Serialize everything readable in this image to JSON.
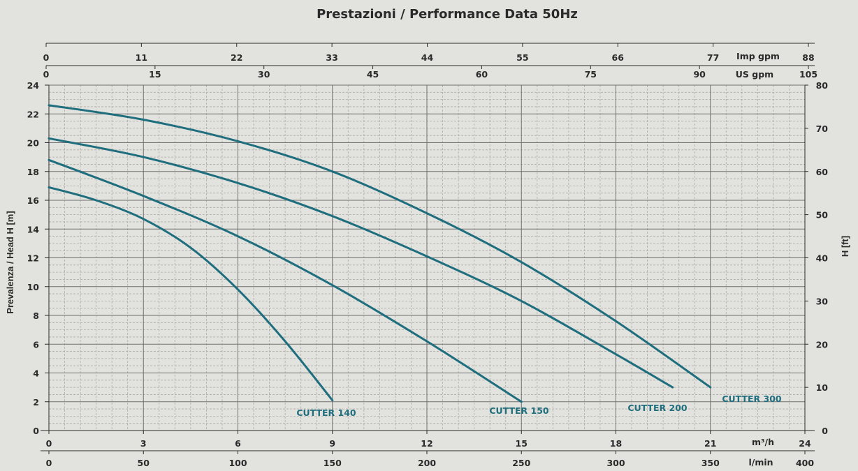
{
  "chart_data": {
    "type": "line",
    "title": "Prestazioni / Performance Data 50Hz",
    "ylabel_left": "Prevalenza / Head H [m]",
    "ylabel_right": "H [ft]",
    "grid": true,
    "colors": {
      "curve": "#1f6e7e",
      "grid_major": "#6f6f6f",
      "grid_minor": "#b0aca6",
      "text": "#2a2a2a",
      "background": "#e2e2de"
    },
    "axes": {
      "bottom_primary": {
        "unit": "m³/h",
        "range": [
          0,
          24
        ],
        "ticks": [
          "0",
          "3",
          "6",
          "9",
          "12",
          "15",
          "18",
          "21",
          "24"
        ]
      },
      "bottom_secondary": {
        "unit": "l/min",
        "range": [
          0,
          400
        ],
        "ticks": [
          "0",
          "50",
          "100",
          "150",
          "200",
          "250",
          "300",
          "350",
          "400"
        ]
      },
      "top_primary": {
        "unit": "US gpm",
        "range": [
          0,
          105
        ],
        "ticks": [
          "0",
          "15",
          "30",
          "45",
          "60",
          "75",
          "90",
          "105"
        ]
      },
      "top_secondary": {
        "unit": "Imp gpm",
        "range": [
          0,
          88
        ],
        "ticks": [
          "0",
          "11",
          "22",
          "33",
          "44",
          "55",
          "66",
          "77",
          "88"
        ]
      },
      "left": {
        "unit": "m",
        "range": [
          0,
          24
        ],
        "ticks": [
          "0",
          "2",
          "4",
          "6",
          "8",
          "10",
          "12",
          "14",
          "16",
          "18",
          "20",
          "22",
          "24"
        ]
      },
      "right": {
        "unit": "ft",
        "range": [
          0,
          80
        ],
        "ticks": [
          "0",
          "10",
          "20",
          "30",
          "40",
          "50",
          "60",
          "70",
          "80"
        ]
      }
    },
    "series": [
      {
        "name": "CUTTER 140",
        "x": [
          0,
          1.5,
          3,
          4.5,
          6,
          7.5,
          9
        ],
        "y": [
          16.9,
          16.0,
          14.7,
          12.7,
          9.8,
          6.2,
          2.1
        ]
      },
      {
        "name": "CUTTER 150",
        "x": [
          0,
          3,
          6,
          9,
          12,
          15
        ],
        "y": [
          18.8,
          16.3,
          13.5,
          10.1,
          6.2,
          2.0
        ]
      },
      {
        "name": "CUTTER 200",
        "x": [
          0,
          3,
          6,
          9,
          12,
          15,
          18,
          19.8
        ],
        "y": [
          20.3,
          19.0,
          17.2,
          14.9,
          12.1,
          9.0,
          5.3,
          3.0
        ]
      },
      {
        "name": "CUTTER 300",
        "x": [
          0,
          3,
          6,
          9,
          12,
          15,
          18,
          21
        ],
        "y": [
          22.6,
          21.6,
          20.1,
          18.0,
          15.1,
          11.7,
          7.6,
          3.0
        ]
      }
    ]
  }
}
